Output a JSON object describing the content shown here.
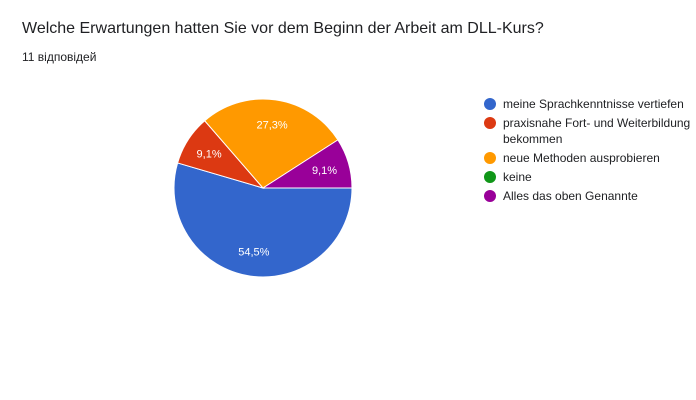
{
  "question": {
    "title": "Welche Erwartungen hatten Sie vor dem Beginn der Arbeit am DLL-Kurs?",
    "responses": "11 відповідей"
  },
  "chart_data": {
    "type": "pie",
    "start_angle_deg": 90,
    "direction": "clockwise",
    "legend_position": "right",
    "slices": [
      {
        "label": "meine Sprachkenntnisse vertiefen",
        "value": 6,
        "percent_label": "54,5%",
        "color": "#3366cc"
      },
      {
        "label": "praxisnahe Fort- und Weiterbildung bekommen",
        "value": 1,
        "percent_label": "9,1%",
        "color": "#dc3912"
      },
      {
        "label": "neue Methoden ausprobieren",
        "value": 3,
        "percent_label": "27,3%",
        "color": "#ff9900"
      },
      {
        "label": "keine",
        "value": 0,
        "percent_label": "",
        "color": "#109618"
      },
      {
        "label": "Alles das oben Genannte",
        "value": 1,
        "percent_label": "9,1%",
        "color": "#990099"
      }
    ]
  }
}
